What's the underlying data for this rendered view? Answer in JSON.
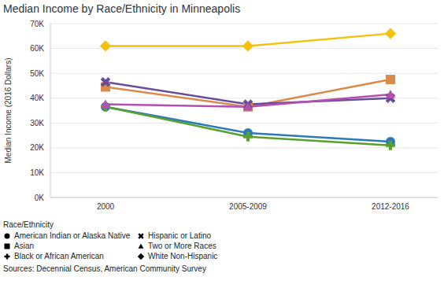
{
  "chart_data": {
    "type": "line",
    "title": "Median Income by Race/Ethnicity in Minneapolis",
    "y_label": "Median Income (2016 Dollars)",
    "legend_title": "Race/Ethnicity",
    "source": "Sources: Decennial Census, American Community Survey",
    "categories": [
      "2000",
      "2005-2009",
      "2012-2016"
    ],
    "ylim": [
      0,
      70000
    ],
    "yticks": [
      {
        "value": 0,
        "label": "0K"
      },
      {
        "value": 10000,
        "label": "10K"
      },
      {
        "value": 20000,
        "label": "20K"
      },
      {
        "value": 30000,
        "label": "30K"
      },
      {
        "value": 40000,
        "label": "40K"
      },
      {
        "value": 50000,
        "label": "50K"
      },
      {
        "value": 60000,
        "label": "60K"
      },
      {
        "value": 70000,
        "label": "70K"
      }
    ],
    "grid": true,
    "legend": "bottom",
    "series": [
      {
        "name": "American Indian or Alaska Native",
        "color": "#2b7bba",
        "marker": "circle",
        "values": [
          36500,
          26000,
          22500
        ]
      },
      {
        "name": "Asian",
        "color": "#d98c4a",
        "marker": "square",
        "values": [
          44500,
          36500,
          47500
        ]
      },
      {
        "name": "Black or African American",
        "color": "#5aa02c",
        "marker": "plus",
        "values": [
          36500,
          24500,
          21000
        ]
      },
      {
        "name": "Hispanic or Latino",
        "color": "#6a4c9c",
        "marker": "cross",
        "values": [
          46500,
          37500,
          40000
        ]
      },
      {
        "name": "Two or More Races",
        "color": "#b44fb0",
        "marker": "triangle",
        "values": [
          37500,
          36500,
          41500
        ]
      },
      {
        "name": "White Non-Hispanic",
        "color": "#f4c20d",
        "marker": "diamond",
        "values": [
          61000,
          61000,
          66000
        ]
      }
    ]
  }
}
